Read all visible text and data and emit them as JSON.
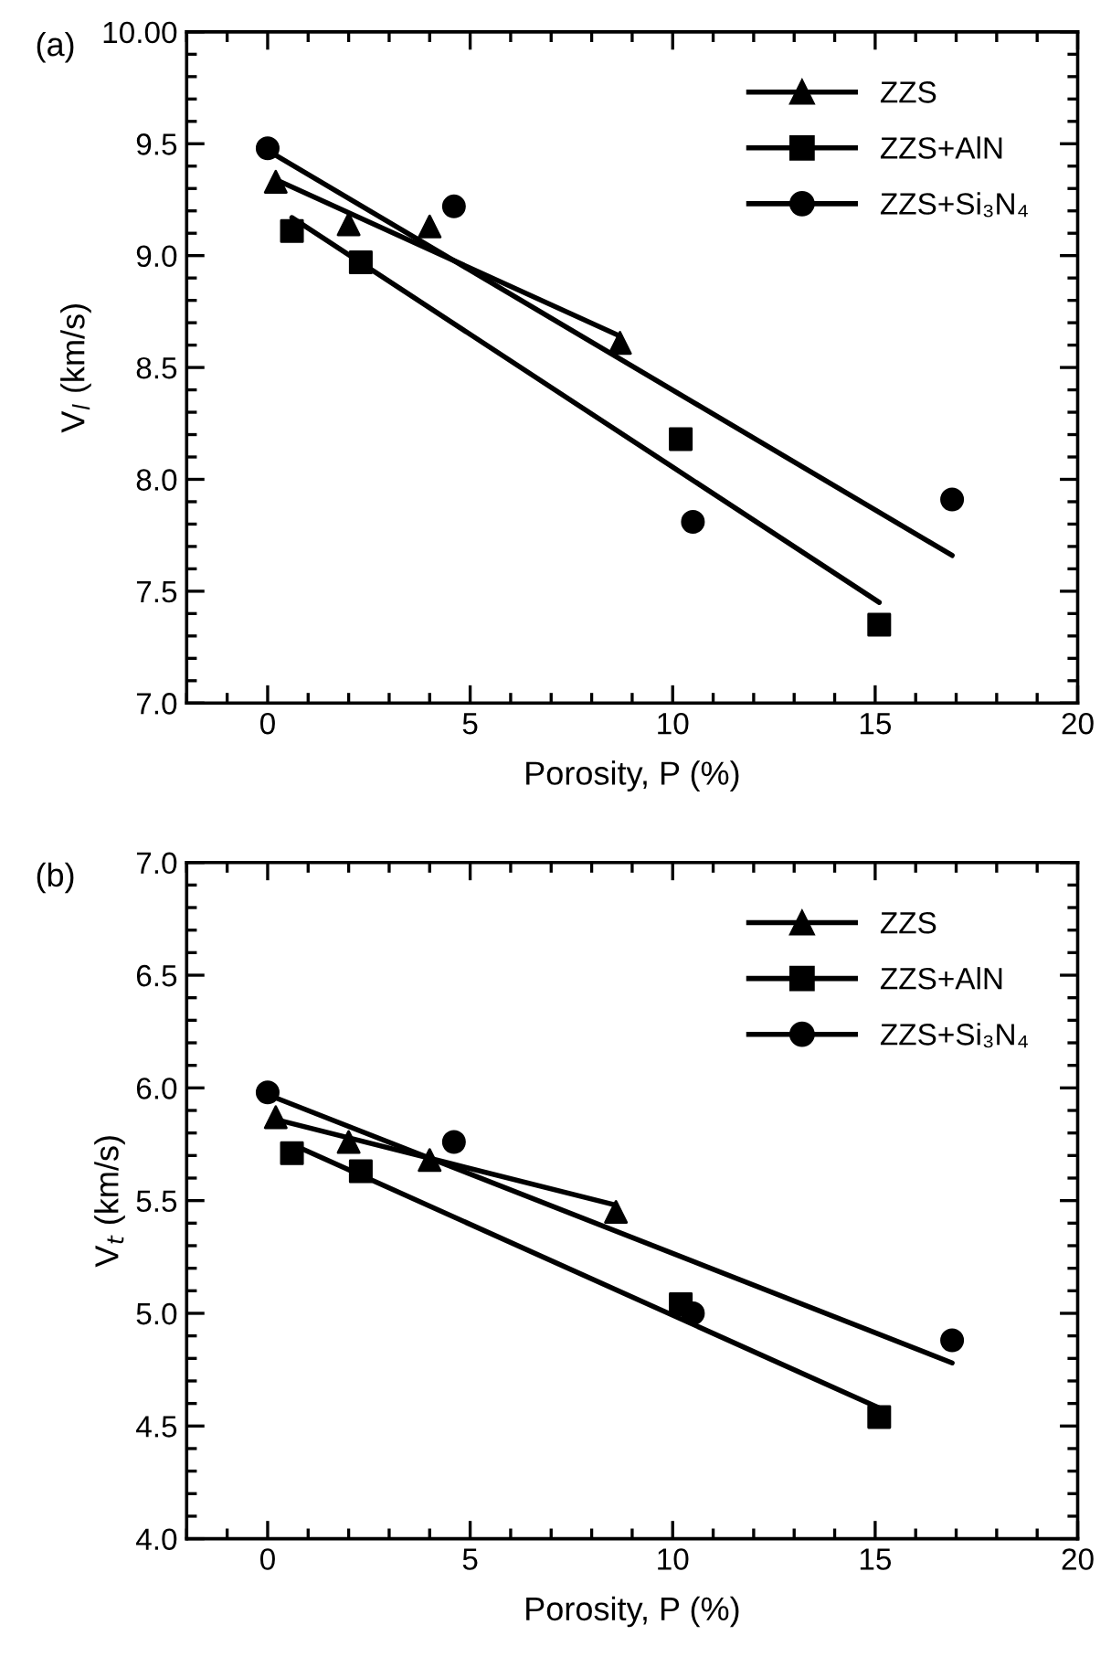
{
  "chart_data": [
    {
      "type": "scatter",
      "annotations": [
        "(a)"
      ],
      "xlabel": "Porosity, P (%)",
      "ylabel": "V$_{l}$ (km/s)",
      "xlim": [
        -2,
        20
      ],
      "xticks": [
        0,
        5,
        10,
        15,
        20
      ],
      "ylim": [
        7.0,
        10.0
      ],
      "yticks": [
        {
          "value": 7.0,
          "label": "7.0"
        },
        {
          "value": 7.5,
          "label": "7.5"
        },
        {
          "value": 8.0,
          "label": "8.0"
        },
        {
          "value": 8.5,
          "label": "8.5"
        },
        {
          "value": 9.0,
          "label": "9.0"
        },
        {
          "value": 9.5,
          "label": "9.5"
        },
        {
          "value": 10.0,
          "label": "10.00"
        }
      ],
      "grid": false,
      "legend": "top right",
      "series": [
        {
          "name": "ZZS",
          "marker": "triangle",
          "color": "#000000",
          "x": [
            0.2,
            2.0,
            4.0,
            8.7
          ],
          "values": [
            9.33,
            9.14,
            9.13,
            8.61
          ]
        },
        {
          "name": "ZZS+AlN",
          "marker": "square",
          "color": "#000000",
          "x": [
            0.6,
            2.3,
            10.2,
            15.1
          ],
          "values": [
            9.11,
            8.97,
            8.18,
            7.35
          ]
        },
        {
          "name": "ZZS+Si₃N₄",
          "marker": "circle",
          "color": "#000000",
          "x": [
            0.0,
            4.6,
            10.5,
            16.9
          ],
          "values": [
            9.48,
            9.22,
            7.81,
            7.91
          ]
        },
        {
          "type": "line",
          "color": "#000000",
          "x": [
            0.2,
            8.7
          ],
          "values": [
            9.34,
            8.64
          ]
        },
        {
          "type": "line",
          "color": "#000000",
          "x": [
            0.6,
            15.1
          ],
          "values": [
            9.17,
            7.45
          ]
        },
        {
          "type": "line",
          "color": "#000000",
          "x": [
            0.0,
            16.9
          ],
          "values": [
            9.47,
            7.66
          ]
        }
      ]
    },
    {
      "type": "scatter",
      "annotations": [
        "(b)"
      ],
      "xlabel": "Porosity, P (%)",
      "ylabel": "V$_{t}$ (km/s)",
      "xlim": [
        -2,
        20
      ],
      "xticks": [
        0,
        5,
        10,
        15,
        20
      ],
      "ylim": [
        4.0,
        7.0
      ],
      "yticks": [
        {
          "value": 4.0,
          "label": "4.0"
        },
        {
          "value": 4.5,
          "label": "4.5"
        },
        {
          "value": 5.0,
          "label": "5.0"
        },
        {
          "value": 5.5,
          "label": "5.5"
        },
        {
          "value": 6.0,
          "label": "6.0"
        },
        {
          "value": 6.5,
          "label": "6.5"
        },
        {
          "value": 7.0,
          "label": "7.0"
        }
      ],
      "grid": false,
      "legend": "top right",
      "series": [
        {
          "name": "ZZS",
          "marker": "triangle",
          "color": "#000000",
          "x": [
            0.2,
            2.0,
            4.0,
            8.6
          ],
          "values": [
            5.87,
            5.76,
            5.68,
            5.45
          ]
        },
        {
          "name": "ZZS+AlN",
          "marker": "square",
          "color": "#000000",
          "x": [
            0.6,
            2.3,
            10.2,
            15.1
          ],
          "values": [
            5.71,
            5.63,
            5.04,
            4.54
          ]
        },
        {
          "name": "ZZS+Si₃N₄",
          "marker": "circle",
          "color": "#000000",
          "x": [
            0.0,
            4.6,
            10.5,
            16.9
          ],
          "values": [
            5.98,
            5.76,
            5.0,
            4.88
          ]
        },
        {
          "type": "line",
          "color": "#000000",
          "x": [
            0.2,
            8.6
          ],
          "values": [
            5.86,
            5.48
          ]
        },
        {
          "type": "line",
          "color": "#000000",
          "x": [
            0.6,
            15.1
          ],
          "values": [
            5.75,
            4.58
          ]
        },
        {
          "type": "line",
          "color": "#000000",
          "x": [
            0.0,
            16.9
          ],
          "values": [
            5.97,
            4.78
          ]
        }
      ]
    }
  ]
}
